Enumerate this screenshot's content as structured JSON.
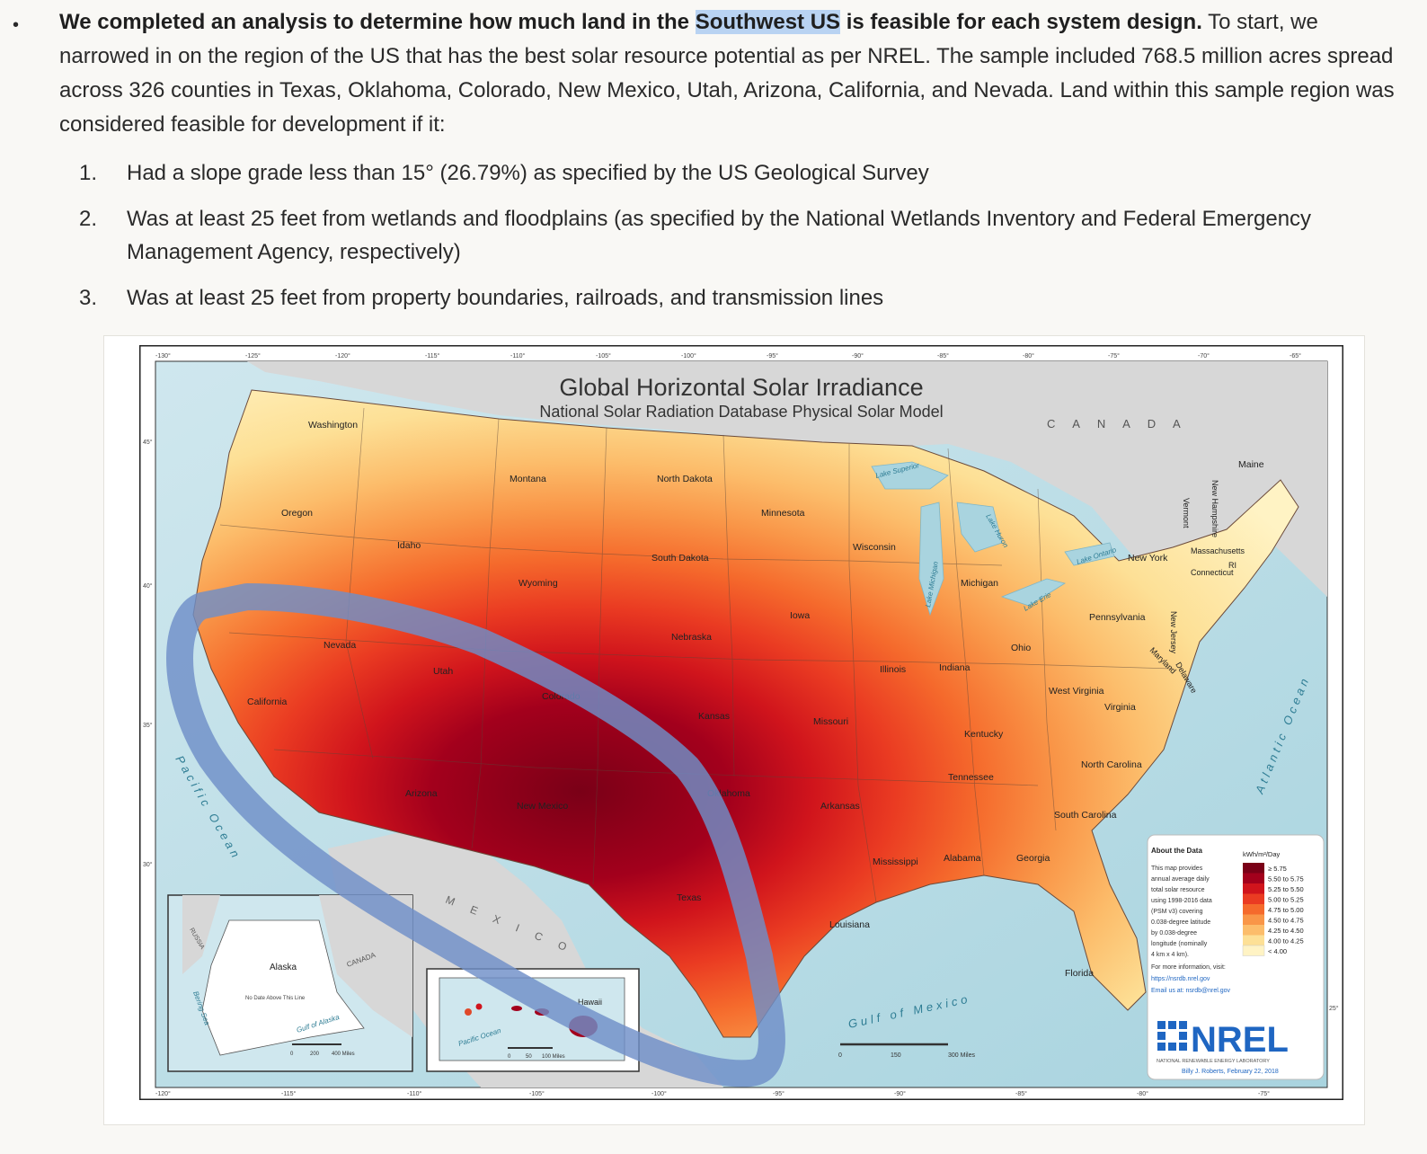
{
  "paragraph": {
    "bold_lead": "We completed an analysis to determine how much land in the",
    "highlight": "Southwest US",
    "bold_tail": "is feasible for each system design.",
    "body": "To start, we narrowed in on the region of the US that has the best solar resource potential as per NREL. The sample included 768.5 million acres spread across 326 counties in Texas, Oklahoma, Colorado, New Mexico, Utah, Arizona, California, and Nevada. Land within this sample region was considered feasible for development if it:"
  },
  "criteria": [
    {
      "num": "1.",
      "text": "Had a slope grade less than 15° (26.79%) as specified by the US Geological Survey"
    },
    {
      "num": "2.",
      "text": "Was at least 25 feet from wetlands and floodplains (as specified by the National Wetlands Inventory and Federal Emergency Management Agency, respectively)"
    },
    {
      "num": "3.",
      "text": "Was at least 25 feet from property boundaries, railroads, and transmission lines"
    }
  ],
  "map": {
    "title": "Global Horizontal Solar Irradiance",
    "subtitle": "National Solar Radiation Database Physical Solar Model",
    "country_label": "C A N A D A",
    "mexico_label": "M E X I C O",
    "pacific_label": "Pacific Ocean",
    "atlantic_label": "Atlantic Ocean",
    "gulf_label": "Gulf of Mexico",
    "top_ticks": [
      "-130°",
      "-125°",
      "-120°",
      "-115°",
      "-110°",
      "-105°",
      "-100°",
      "-95°",
      "-90°",
      "-85°",
      "-80°",
      "-75°",
      "-70°",
      "-65°"
    ],
    "bottom_ticks": [
      "-120°",
      "-115°",
      "-110°",
      "-105°",
      "-100°",
      "-95°",
      "-90°",
      "-85°",
      "-80°",
      "-75°"
    ],
    "side_ticks": [
      "45°",
      "40°",
      "35°",
      "30°",
      "25°"
    ],
    "states": [
      "Washington",
      "Oregon",
      "California",
      "Nevada",
      "Idaho",
      "Montana",
      "Wyoming",
      "Utah",
      "Arizona",
      "Colorado",
      "New Mexico",
      "North Dakota",
      "South Dakota",
      "Nebraska",
      "Kansas",
      "Oklahoma",
      "Texas",
      "Minnesota",
      "Iowa",
      "Missouri",
      "Arkansas",
      "Louisiana",
      "Wisconsin",
      "Illinois",
      "Michigan",
      "Indiana",
      "Ohio",
      "Kentucky",
      "Tennessee",
      "Mississippi",
      "Alabama",
      "Georgia",
      "Florida",
      "South Carolina",
      "North Carolina",
      "Virginia",
      "West Virginia",
      "Pennsylvania",
      "New York",
      "Vermont",
      "New Hampshire",
      "Maine",
      "Massachusetts",
      "Connecticut",
      "RI",
      "New Jersey",
      "Delaware",
      "Maryland"
    ],
    "lakes": [
      "Lake Superior",
      "Lake Michigan",
      "Lake Huron",
      "Lake Erie",
      "Lake Ontario"
    ],
    "alaska_inset": {
      "label": "Alaska",
      "russia": "RUSSIA",
      "canada": "CANADA",
      "sea": "Bering Sea",
      "gulf": "Gulf of Alaska",
      "dateline": "No Date Above This Line",
      "scale": [
        "0",
        "200",
        "400 Miles"
      ]
    },
    "hawaii_inset": {
      "label": "Hawaii",
      "ocean": "Pacific Ocean",
      "scale": [
        "0",
        "50",
        "100 Miles"
      ]
    },
    "main_scale": [
      "0",
      "150",
      "300 Miles"
    ],
    "legend": {
      "heading": "About the Data",
      "unit": "kWh/m²/Day",
      "description": [
        "This map provides",
        "annual average daily",
        "total solar resource",
        "using 1998-2016 data",
        "(PSM v3) covering",
        "0.038-degree latitude",
        "by 0.038-degree",
        "longitude (nominally",
        "4 km x 4 km)."
      ],
      "more_info": "For more information, visit:",
      "url": "https://nsrdb.nrel.gov",
      "email": "Email us at: nsrdb@nrel.gov",
      "classes": [
        {
          "label": "≥ 5.75",
          "color": "#7a0017"
        },
        {
          "label": "5.50 to 5.75",
          "color": "#a3001c"
        },
        {
          "label": "5.25 to 5.50",
          "color": "#d0141c"
        },
        {
          "label": "5.00 to 5.25",
          "color": "#ea3b22"
        },
        {
          "label": "4.75 to 5.00",
          "color": "#f56a2c"
        },
        {
          "label": "4.50 to 4.75",
          "color": "#f99648"
        },
        {
          "label": "4.25 to 4.50",
          "color": "#fcbd6b"
        },
        {
          "label": "4.00 to 4.25",
          "color": "#fde096"
        },
        {
          "label": "< 4.00",
          "color": "#fff3c4"
        }
      ]
    },
    "logo": "NREL",
    "logo_sub": "NATIONAL RENEWABLE ENERGY LABORATORY",
    "credit": "Billy J. Roberts, February 22, 2018",
    "highlight_region_color": "#6f8fc8"
  }
}
